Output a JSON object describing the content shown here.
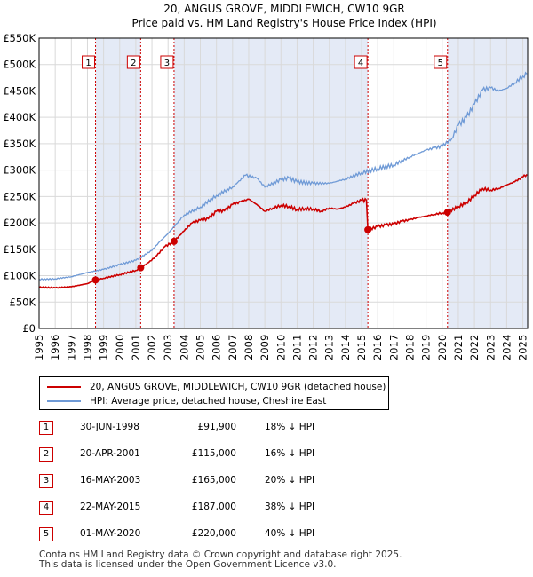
{
  "colors": {
    "property": "#cc0000",
    "hpi": "#6f9ad6",
    "shade": "#e4eaf6",
    "grid": "#d9d9d9"
  },
  "chart_data": {
    "type": "line",
    "title": "20, ANGUS GROVE, MIDDLEWICH, CW10 9GR",
    "subtitle": "Price paid vs. HM Land Registry's House Price Index (HPI)",
    "xlim": [
      1995,
      2025.3
    ],
    "ylim": [
      0,
      550000
    ],
    "y_ticks": [
      0,
      50000,
      100000,
      150000,
      200000,
      250000,
      300000,
      350000,
      400000,
      450000,
      500000,
      550000
    ],
    "y_tick_labels": [
      "£0",
      "£50K",
      "£100K",
      "£150K",
      "£200K",
      "£250K",
      "£300K",
      "£350K",
      "£400K",
      "£450K",
      "£500K",
      "£550K"
    ],
    "x_ticks": [
      "1995",
      "1996",
      "1997",
      "1998",
      "1999",
      "2000",
      "2001",
      "2002",
      "2003",
      "2004",
      "2005",
      "2006",
      "2007",
      "2008",
      "2009",
      "2010",
      "2011",
      "2012",
      "2013",
      "2014",
      "2015",
      "2016",
      "2017",
      "2018",
      "2019",
      "2020",
      "2021",
      "2022",
      "2023",
      "2024",
      "2025"
    ],
    "shaded_ranges": [
      [
        1998.5,
        2001.3
      ],
      [
        2003.37,
        2015.39
      ],
      [
        2020.33,
        2025.3
      ]
    ],
    "sales": [
      {
        "label": "1",
        "x": 1998.5,
        "y": 91900
      },
      {
        "label": "2",
        "x": 2001.3,
        "y": 115000
      },
      {
        "label": "3",
        "x": 2003.37,
        "y": 165000
      },
      {
        "label": "4",
        "x": 2015.39,
        "y": 187000
      },
      {
        "label": "5",
        "x": 2020.33,
        "y": 220000
      }
    ],
    "series": [
      {
        "name": "20, ANGUS GROVE, MIDDLEWICH, CW10 9GR (detached house)",
        "points": [
          [
            1995,
            78000
          ],
          [
            1996,
            77000
          ],
          [
            1997,
            79000
          ],
          [
            1998,
            85000
          ],
          [
            1998.5,
            91900
          ],
          [
            1999,
            95000
          ],
          [
            2000,
            102000
          ],
          [
            2001,
            110000
          ],
          [
            2001.3,
            115000
          ],
          [
            2001.8,
            125000
          ],
          [
            2002.3,
            138000
          ],
          [
            2002.8,
            155000
          ],
          [
            2003.37,
            165000
          ],
          [
            2004,
            185000
          ],
          [
            2004.5,
            200000
          ],
          [
            2005,
            205000
          ],
          [
            2005.5,
            208000
          ],
          [
            2006,
            222000
          ],
          [
            2006.5,
            223000
          ],
          [
            2007,
            235000
          ],
          [
            2007.5,
            240000
          ],
          [
            2008,
            245000
          ],
          [
            2008.5,
            235000
          ],
          [
            2009,
            222000
          ],
          [
            2009.5,
            228000
          ],
          [
            2010,
            233000
          ],
          [
            2010.5,
            231000
          ],
          [
            2011,
            225000
          ],
          [
            2011.5,
            227000
          ],
          [
            2012,
            226000
          ],
          [
            2012.5,
            222000
          ],
          [
            2013,
            228000
          ],
          [
            2013.5,
            226000
          ],
          [
            2014,
            230000
          ],
          [
            2014.5,
            237000
          ],
          [
            2015,
            243000
          ],
          [
            2015.3,
            243000
          ],
          [
            2015.39,
            187000
          ],
          [
            2016,
            193000
          ],
          [
            2016.5,
            196000
          ],
          [
            2017,
            198000
          ],
          [
            2017.5,
            203000
          ],
          [
            2018,
            206000
          ],
          [
            2018.5,
            210000
          ],
          [
            2019,
            213000
          ],
          [
            2019.5,
            216000
          ],
          [
            2020,
            219000
          ],
          [
            2020.33,
            220000
          ],
          [
            2021,
            231000
          ],
          [
            2021.5,
            238000
          ],
          [
            2022,
            252000
          ],
          [
            2022.5,
            265000
          ],
          [
            2023,
            262000
          ],
          [
            2023.5,
            265000
          ],
          [
            2024,
            272000
          ],
          [
            2024.5,
            278000
          ],
          [
            2025,
            287000
          ],
          [
            2025.25,
            292000
          ]
        ]
      },
      {
        "name": "HPI: Average price, detached house, Cheshire East",
        "points": [
          [
            1995,
            93000
          ],
          [
            1996,
            94000
          ],
          [
            1997,
            98000
          ],
          [
            1998,
            106000
          ],
          [
            1999,
            112000
          ],
          [
            2000,
            121000
          ],
          [
            2001,
            129000
          ],
          [
            2002,
            148000
          ],
          [
            2002.5,
            165000
          ],
          [
            2003,
            180000
          ],
          [
            2004,
            215000
          ],
          [
            2005,
            230000
          ],
          [
            2006,
            252000
          ],
          [
            2007,
            268000
          ],
          [
            2007.8,
            290000
          ],
          [
            2008.5,
            285000
          ],
          [
            2009,
            268000
          ],
          [
            2010,
            282000
          ],
          [
            2010.5,
            285000
          ],
          [
            2011,
            278000
          ],
          [
            2012,
            275000
          ],
          [
            2013,
            275000
          ],
          [
            2014,
            283000
          ],
          [
            2015,
            295000
          ],
          [
            2016,
            303000
          ],
          [
            2017,
            310000
          ],
          [
            2018,
            325000
          ],
          [
            2019,
            338000
          ],
          [
            2019.5,
            342000
          ],
          [
            2020,
            345000
          ],
          [
            2020.6,
            360000
          ],
          [
            2021,
            385000
          ],
          [
            2021.5,
            400000
          ],
          [
            2022,
            425000
          ],
          [
            2022.5,
            452000
          ],
          [
            2023,
            456000
          ],
          [
            2023.5,
            450000
          ],
          [
            2024,
            455000
          ],
          [
            2024.5,
            465000
          ],
          [
            2025,
            478000
          ],
          [
            2025.25,
            482000
          ]
        ]
      }
    ]
  },
  "legend": {
    "property_label": "20, ANGUS GROVE, MIDDLEWICH, CW10 9GR (detached house)",
    "hpi_label": "HPI: Average price, detached house, Cheshire East"
  },
  "sales_table": [
    {
      "num": "1",
      "date": "30-JUN-1998",
      "price": "£91,900",
      "hpi": "18% ↓ HPI"
    },
    {
      "num": "2",
      "date": "20-APR-2001",
      "price": "£115,000",
      "hpi": "16% ↓ HPI"
    },
    {
      "num": "3",
      "date": "16-MAY-2003",
      "price": "£165,000",
      "hpi": "20% ↓ HPI"
    },
    {
      "num": "4",
      "date": "22-MAY-2015",
      "price": "£187,000",
      "hpi": "38% ↓ HPI"
    },
    {
      "num": "5",
      "date": "01-MAY-2020",
      "price": "£220,000",
      "hpi": "40% ↓ HPI"
    }
  ],
  "footer": {
    "line1": "Contains HM Land Registry data © Crown copyright and database right 2025.",
    "line2": "This data is licensed under the Open Government Licence v3.0."
  }
}
